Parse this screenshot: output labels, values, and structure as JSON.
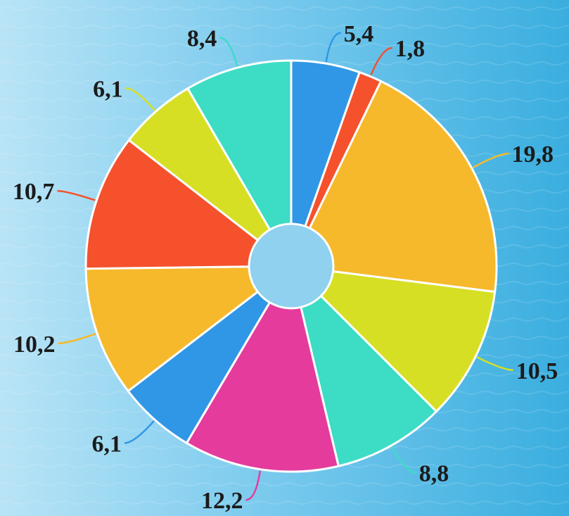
{
  "chart_data": {
    "type": "pie",
    "style": "donut",
    "values": [
      5.4,
      1.8,
      19.8,
      10.5,
      8.8,
      12.2,
      6.1,
      10.2,
      10.7,
      6.1,
      8.4
    ],
    "labels": [
      "5,4",
      "1,8",
      "19,8",
      "10,5",
      "8,8",
      "12,2",
      "6,1",
      "10,2",
      "10,7",
      "6,1",
      "8,4"
    ],
    "colors": [
      "#3097e6",
      "#f5512d",
      "#f6b92c",
      "#d6df24",
      "#3ddcc5",
      "#e53b9c",
      "#3097e6",
      "#f6b92c",
      "#f5512d",
      "#d6df24",
      "#3ddcc5"
    ],
    "start_direction": "top",
    "order": "clockwise",
    "legend": "none",
    "title": ""
  },
  "theme": {
    "background": [
      "#b9e4f6",
      "#3aaedf"
    ],
    "slice_border": "#ffffff",
    "hole_fill": "#8fd1ee",
    "label_color": "#1b1b1b"
  }
}
